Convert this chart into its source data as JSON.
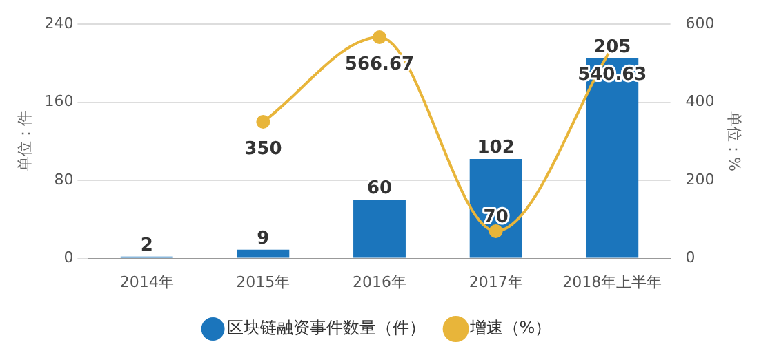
{
  "chart_data": {
    "type": "bar",
    "categories": [
      "2014年",
      "2015年",
      "2016年",
      "2017年",
      "2018年上半年"
    ],
    "series": [
      {
        "name": "区块链融资事件数量（件）",
        "color": "#1b75bc",
        "values": [
          2,
          9,
          60,
          102,
          205
        ]
      },
      {
        "name": "增速（%）",
        "type": "line",
        "axis": "y2",
        "color": "#e8b53a",
        "values": [
          null,
          350,
          566.67,
          70,
          540.63
        ]
      }
    ],
    "ylabel": "单位：件",
    "y2label": "单位：%",
    "ylim": [
      0,
      240
    ],
    "yticks": [
      0,
      80,
      160,
      240
    ],
    "y2lim": [
      0,
      600
    ],
    "y2ticks": [
      0,
      200,
      400,
      600
    ],
    "grid": "y",
    "legend": "bottom",
    "marker": "circle",
    "data_labels": true
  }
}
